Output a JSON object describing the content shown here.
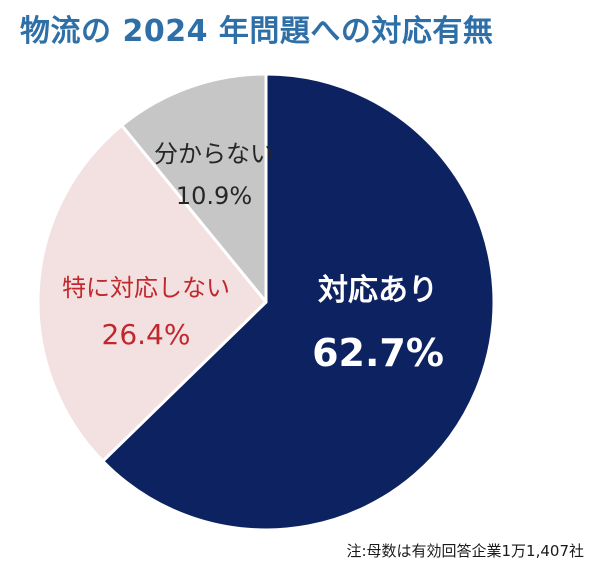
{
  "chart_data": {
    "type": "pie",
    "title": "物流の 2024 年問題への対応有無",
    "start_angle": "12 o'clock",
    "direction": "clockwise",
    "slices": [
      {
        "label": "対応あり",
        "value": 62.7,
        "value_label": "62.7%",
        "color": "#0d2260",
        "text_color": "#ffffff"
      },
      {
        "label": "特に対応しない",
        "value": 26.4,
        "value_label": "26.4%",
        "color": "#f3e1e1",
        "text_color": "#c0282d"
      },
      {
        "label": "分からない",
        "value": 10.9,
        "value_label": "10.9%",
        "color": "#c6c6c6",
        "text_color": "#262626"
      }
    ]
  },
  "colors": {
    "title": "#2e6fa7",
    "slice_border": "#ffffff"
  },
  "footnote": "注:母数は有効回答企業1万1,407社"
}
